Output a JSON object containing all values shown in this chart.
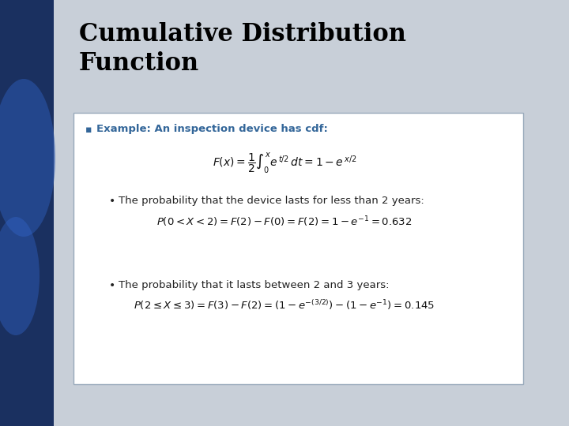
{
  "title_line1": "Cumulative Distribution",
  "title_line2": "Function",
  "title_fontsize": 22,
  "title_color": "#000000",
  "title_weight": "bold",
  "title_family": "serif",
  "bg_main_color": "#c8cfd8",
  "bg_left_color": "#1a3060",
  "box_color": "#ffffff",
  "box_edge_color": "#aabbcc",
  "bullet_color": "#336699",
  "bullet_text": "Example: An inspection device has cdf:",
  "bullet_fontsize": 9.5,
  "formula1_fontsize": 10,
  "sub1_text": "The probability that the device lasts for less than 2 years:",
  "sub_fontsize": 9.5,
  "formula2_fontsize": 9.5,
  "sub2_text": "The probability that it lasts between 2 and 3 years:",
  "formula3_fontsize": 9.5,
  "text_color": "#222222",
  "formula_color": "#111111"
}
